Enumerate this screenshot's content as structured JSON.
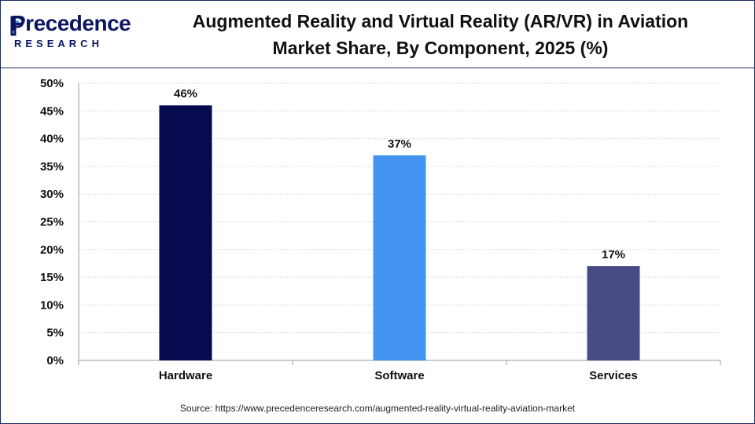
{
  "brand": {
    "name": "Precedence",
    "sub": "RESEARCH",
    "color": "#0b1560",
    "icon": "precedence-logo-icon"
  },
  "title_line1": "Augmented Reality and Virtual Reality (AR/VR) in Aviation",
  "title_line2": "Market Share, By Component, 2025 (%)",
  "source": "Source: https://www.precedenceresearch.com/augmented-reality-virtual-reality-aviation-market",
  "chart_data": {
    "type": "bar",
    "categories": [
      "Hardware",
      "Software",
      "Services"
    ],
    "values": [
      46,
      37,
      17
    ],
    "labels": [
      "46%",
      "37%",
      "17%"
    ],
    "colors": [
      "#070a4e",
      "#4394f0",
      "#474b86"
    ],
    "ylim": [
      0,
      50
    ],
    "yticks": [
      "0%",
      "5%",
      "10%",
      "15%",
      "20%",
      "25%",
      "30%",
      "35%",
      "40%",
      "45%",
      "50%"
    ],
    "grid": true,
    "xlabel": "",
    "ylabel": ""
  }
}
